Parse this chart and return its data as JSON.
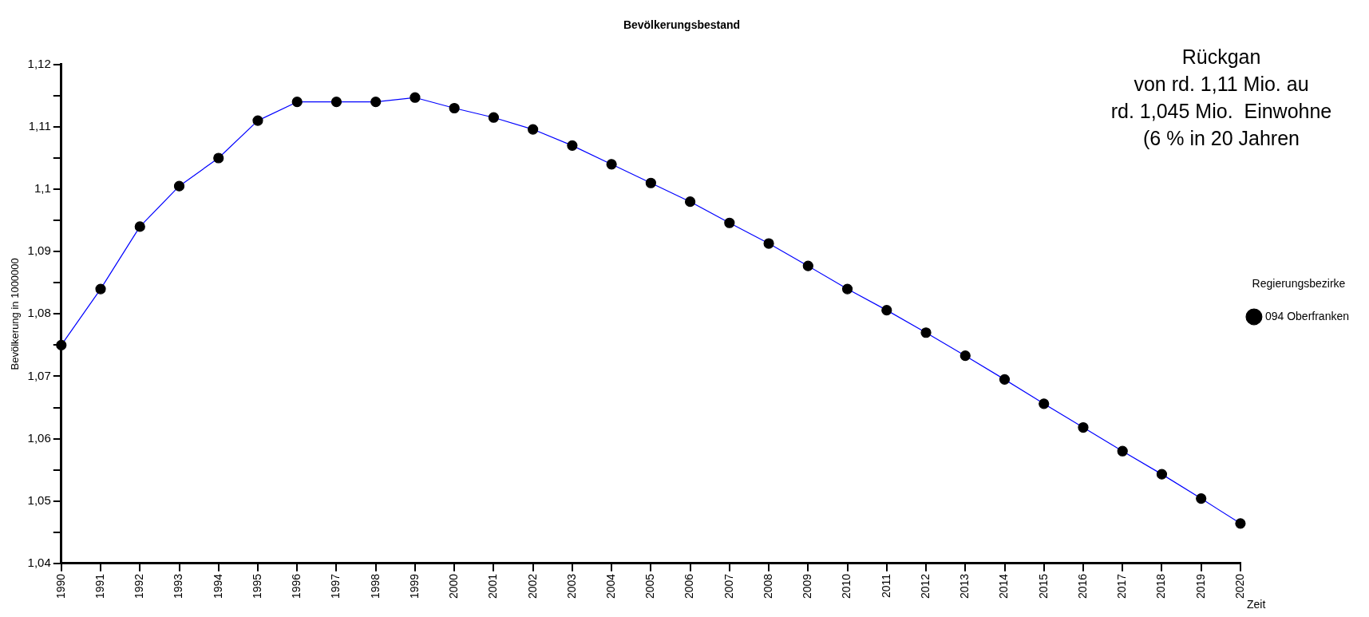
{
  "chart_data": {
    "type": "line",
    "title": "Bevölkerungsbestand",
    "ylabel": "Bevölkerung in 1000000",
    "xlabel": "Zeit",
    "legend_title": "Regierungsbezirke",
    "legend": "right",
    "annotations": [
      "Rückgan",
      "von rd. 1,11 Mio. au",
      "rd. 1,045 Mio.  Einwohne",
      "(6 % in 20 Jahren"
    ],
    "categories": [
      "1990",
      "1991",
      "1992",
      "1993",
      "1994",
      "1995",
      "1996",
      "1997",
      "1998",
      "1999",
      "2000",
      "2001",
      "2002",
      "2003",
      "2004",
      "2005",
      "2006",
      "2007",
      "2008",
      "2009",
      "2010",
      "2011",
      "2012",
      "2013",
      "2014",
      "2015",
      "2016",
      "2017",
      "2018",
      "2019",
      "2020"
    ],
    "series": [
      {
        "name": "094 Oberfranken",
        "color": "#0000ff",
        "values": [
          1.075,
          1.084,
          1.094,
          1.1005,
          1.105,
          1.111,
          1.114,
          1.114,
          1.114,
          1.1147,
          1.113,
          1.1115,
          1.1096,
          1.107,
          1.104,
          1.101,
          1.098,
          1.0946,
          1.0913,
          1.0877,
          1.084,
          1.0806,
          1.077,
          1.0733,
          1.0695,
          1.0656,
          1.0618,
          1.058,
          1.0543,
          1.0504,
          1.0464
        ]
      }
    ],
    "marker": "circle",
    "line_style": "solid",
    "grid": false,
    "ylim": [
      1.04,
      1.12
    ],
    "yticks": [
      {
        "value": 1.04,
        "label": "1,04"
      },
      {
        "value": 1.045,
        "label": null
      },
      {
        "value": 1.05,
        "label": "1,05"
      },
      {
        "value": 1.055,
        "label": null
      },
      {
        "value": 1.06,
        "label": "1,06"
      },
      {
        "value": 1.065,
        "label": null
      },
      {
        "value": 1.07,
        "label": "1,07"
      },
      {
        "value": 1.075,
        "label": null
      },
      {
        "value": 1.08,
        "label": "1,08"
      },
      {
        "value": 1.085,
        "label": null
      },
      {
        "value": 1.09,
        "label": "1,09"
      },
      {
        "value": 1.095,
        "label": null
      },
      {
        "value": 1.1,
        "label": "1,1"
      },
      {
        "value": 1.105,
        "label": null
      },
      {
        "value": 1.11,
        "label": "1,11"
      },
      {
        "value": 1.115,
        "label": null
      },
      {
        "value": 1.12,
        "label": "1,12"
      }
    ]
  }
}
